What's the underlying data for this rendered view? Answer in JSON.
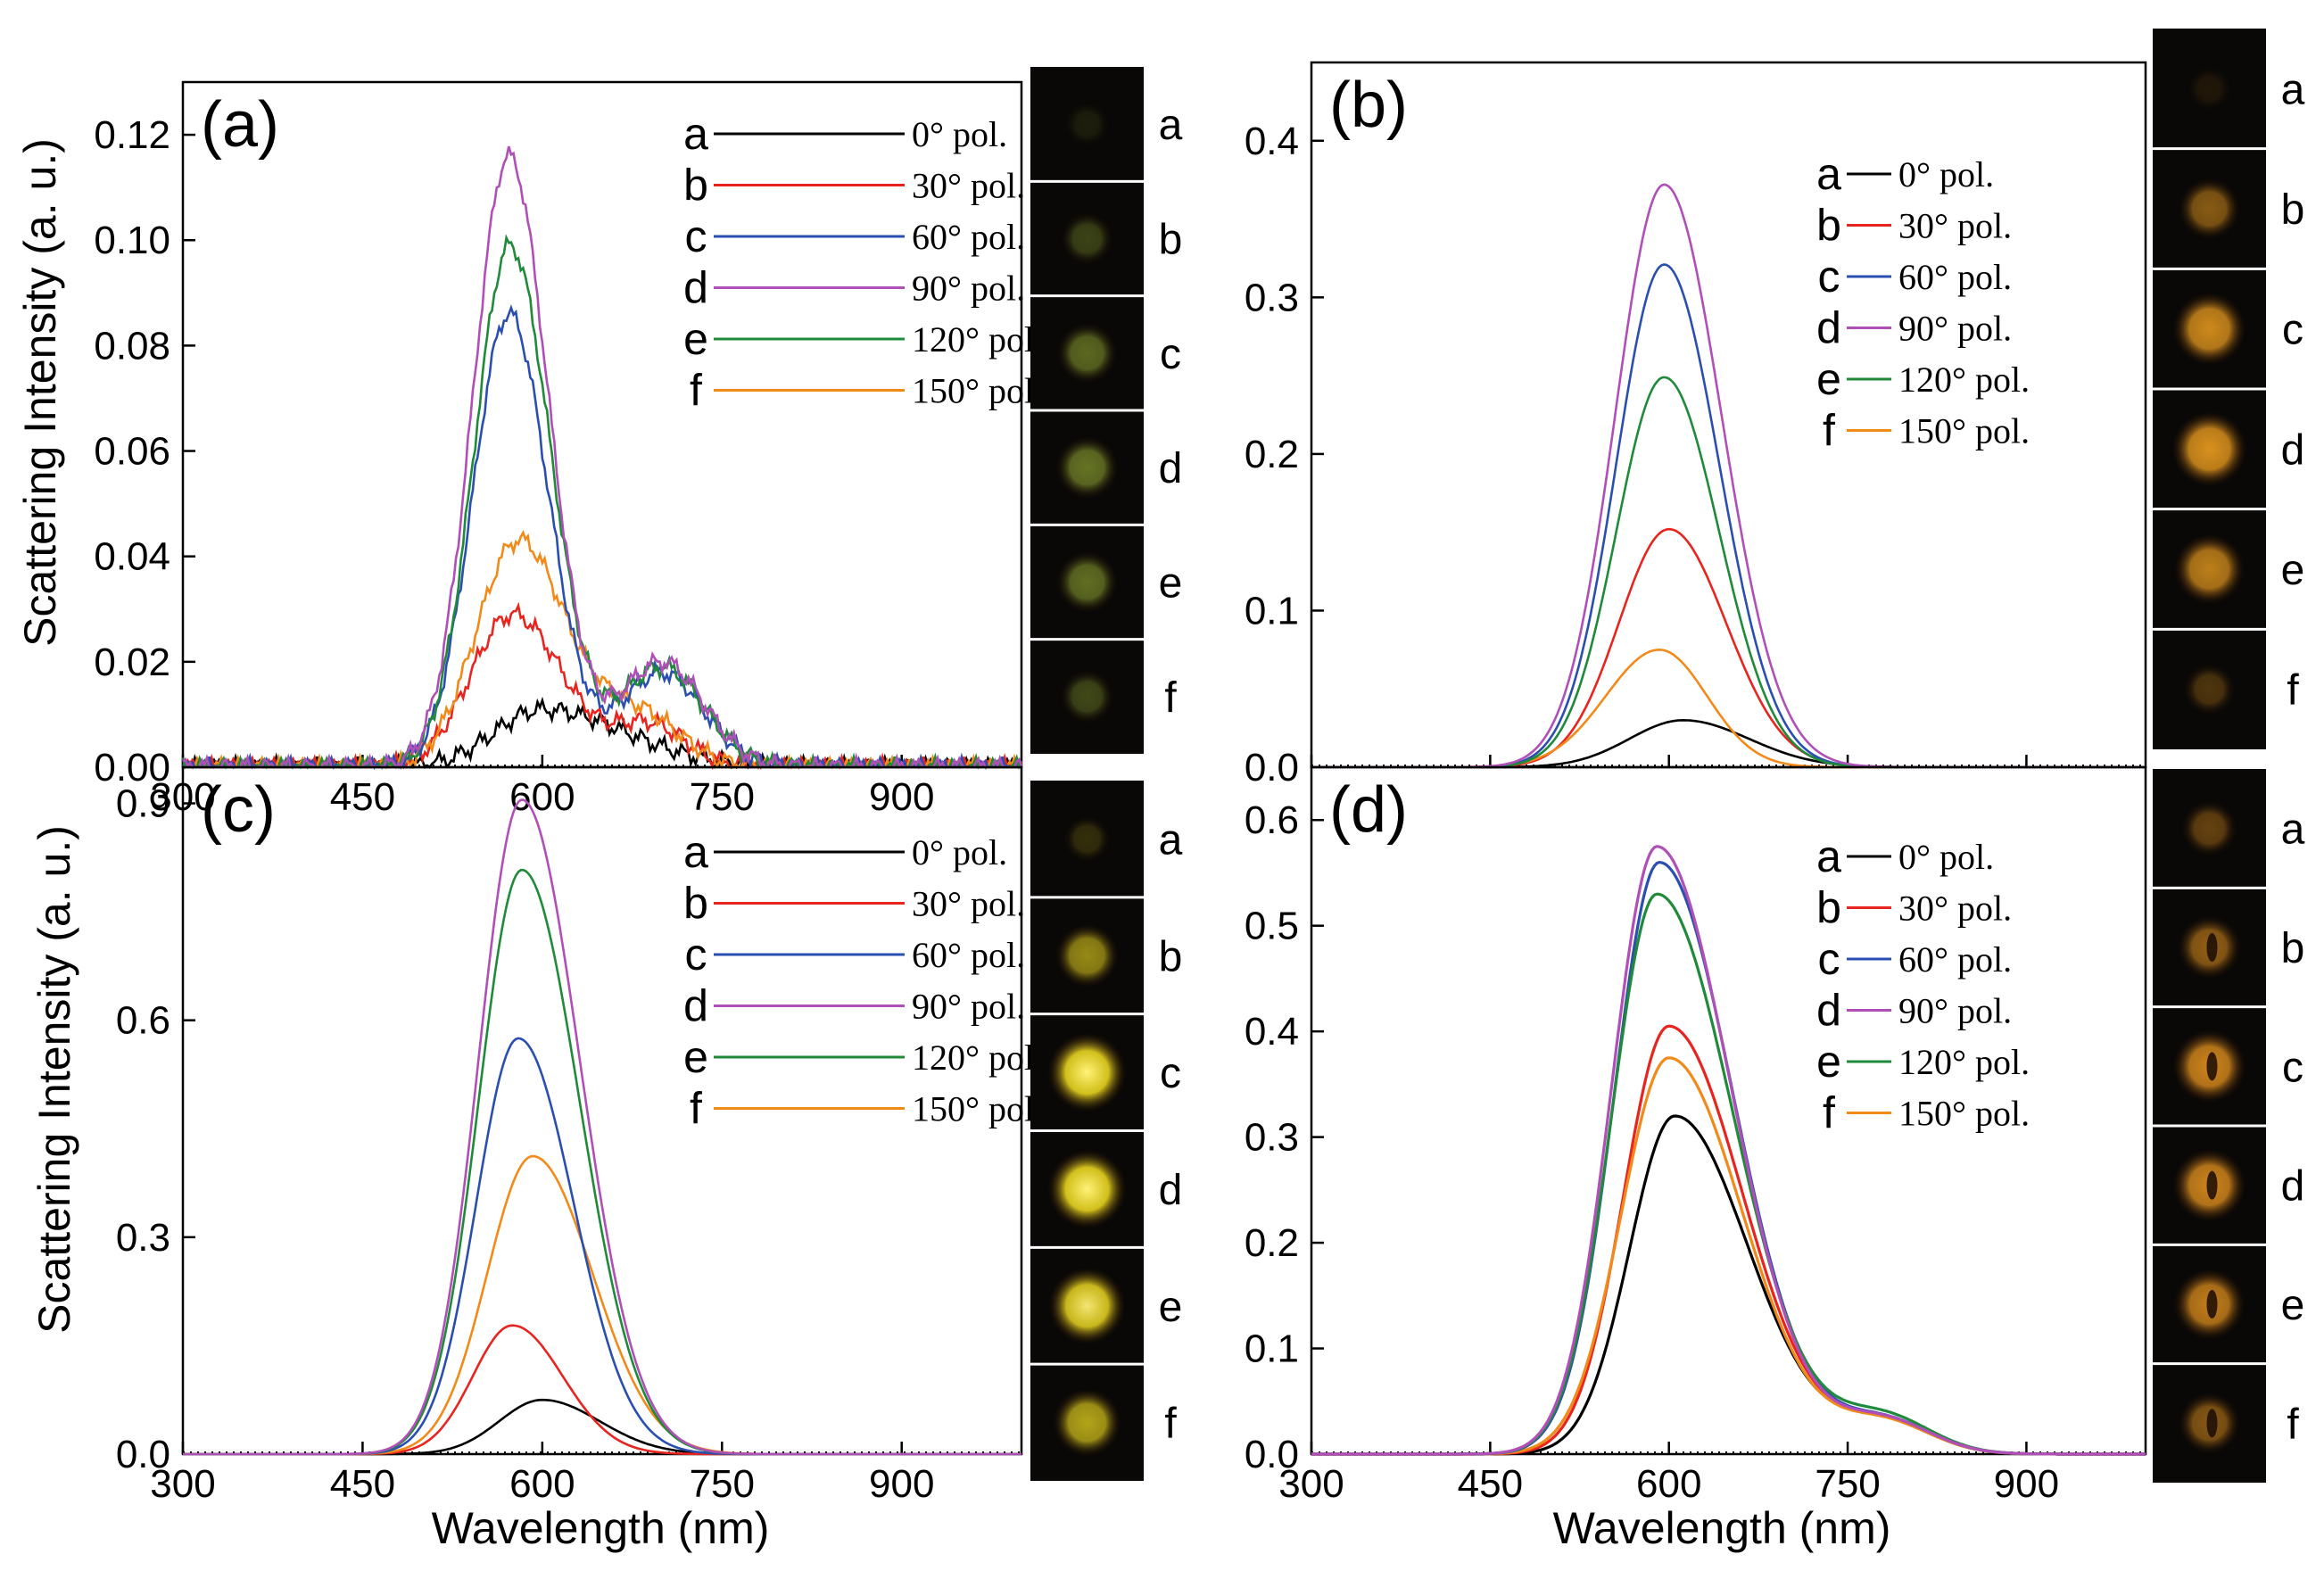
{
  "figure": {
    "xlabel": "Wavelength (nm)",
    "ylabel": "Scattering Intensity (a. u.)"
  },
  "series_colors": [
    "#000000",
    "#e8241f",
    "#2b4fb0",
    "#b04fb8",
    "#1f8a3a",
    "#f28a1a"
  ],
  "chart_data": [
    {
      "type": "line",
      "panel": "(a)",
      "xlabel": "Wavelength (nm)",
      "ylabel": "Scattering Intensity (a. u.)",
      "xlim": [
        300,
        1000
      ],
      "ylim": [
        0,
        0.13
      ],
      "xticks": [
        "300",
        "450",
        "600",
        "750",
        "900"
      ],
      "yticks": [
        "0.00",
        "0.02",
        "0.04",
        "0.06",
        "0.08",
        "0.10",
        "0.12"
      ],
      "ytick_values": [
        0,
        0.02,
        0.04,
        0.06,
        0.08,
        0.1,
        0.12
      ],
      "series": [
        {
          "key": "a",
          "name": "0° pol.",
          "peak": 600,
          "amp": 0.011,
          "w_left": 40,
          "w_right": 70,
          "shoulder": null
        },
        {
          "key": "b",
          "name": "30° pol.",
          "peak": 575,
          "amp": 0.029,
          "w_left": 35,
          "w_right": 42,
          "shoulder": [
            690,
            0.008,
            30
          ]
        },
        {
          "key": "c",
          "name": "60° pol.",
          "peak": 572,
          "amp": 0.086,
          "w_left": 30,
          "w_right": 33,
          "shoulder": [
            700,
            0.018,
            35
          ]
        },
        {
          "key": "d",
          "name": "90° pol.",
          "peak": 572,
          "amp": 0.116,
          "w_left": 30,
          "w_right": 33,
          "shoulder": [
            700,
            0.02,
            35
          ]
        },
        {
          "key": "e",
          "name": "120° pol.",
          "peak": 573,
          "amp": 0.099,
          "w_left": 30,
          "w_right": 34,
          "shoulder": [
            700,
            0.019,
            35
          ]
        },
        {
          "key": "f",
          "name": "150° pol.",
          "peak": 580,
          "amp": 0.043,
          "w_left": 35,
          "w_right": 40,
          "shoulder": [
            680,
            0.01,
            35
          ]
        }
      ],
      "image_labels": [
        "a",
        "b",
        "c",
        "d",
        "e",
        "f"
      ],
      "image_brightness": [
        0.12,
        0.32,
        0.52,
        0.58,
        0.55,
        0.35
      ],
      "image_hue": "#a8c23a"
    },
    {
      "type": "line",
      "panel": "(b)",
      "xlabel": "",
      "ylabel": "",
      "xlim": [
        300,
        1000
      ],
      "ylim": [
        0,
        0.45
      ],
      "xticks": [
        "",
        "",
        "",
        "",
        ""
      ],
      "yticks": [
        "0.0",
        "0.1",
        "0.2",
        "0.3",
        "0.4"
      ],
      "ytick_values": [
        0,
        0.1,
        0.2,
        0.3,
        0.4
      ],
      "series": [
        {
          "key": "a",
          "name": "0° pol.",
          "peak": 612,
          "amp": 0.03,
          "w_left": 45,
          "w_right": 55,
          "shoulder": null
        },
        {
          "key": "b",
          "name": "30° pol.",
          "peak": 600,
          "amp": 0.152,
          "w_left": 42,
          "w_right": 48,
          "shoulder": null
        },
        {
          "key": "c",
          "name": "60° pol.",
          "peak": 596,
          "amp": 0.321,
          "w_left": 40,
          "w_right": 46,
          "shoulder": null
        },
        {
          "key": "d",
          "name": "90° pol.",
          "peak": 596,
          "amp": 0.372,
          "w_left": 41,
          "w_right": 48,
          "shoulder": null
        },
        {
          "key": "e",
          "name": "120° pol.",
          "peak": 596,
          "amp": 0.249,
          "w_left": 40,
          "w_right": 46,
          "shoulder": null
        },
        {
          "key": "f",
          "name": "150° pol.",
          "peak": 592,
          "amp": 0.075,
          "w_left": 45,
          "w_right": 40,
          "shoulder": null
        }
      ],
      "image_labels": [
        "a",
        "b",
        "c",
        "d",
        "e",
        "f"
      ],
      "image_brightness": [
        0.1,
        0.55,
        0.85,
        0.9,
        0.78,
        0.3
      ],
      "image_hue": "#f0a020"
    },
    {
      "type": "line",
      "panel": "(c)",
      "xlabel": "Wavelength (nm)",
      "ylabel": "Scattering Intensity (a. u.)",
      "xlim": [
        300,
        1000
      ],
      "ylim": [
        0,
        0.95
      ],
      "xticks": [
        "300",
        "450",
        "600",
        "750",
        "900"
      ],
      "yticks": [
        "0.0",
        "0.3",
        "0.6",
        "0.9"
      ],
      "ytick_values": [
        0,
        0.3,
        0.6,
        0.9
      ],
      "series": [
        {
          "key": "a",
          "name": "0° pol.",
          "peak": 600,
          "amp": 0.075,
          "w_left": 36,
          "w_right": 48,
          "shoulder": null
        },
        {
          "key": "b",
          "name": "30° pol.",
          "peak": 575,
          "amp": 0.178,
          "w_left": 33,
          "w_right": 42,
          "shoulder": null
        },
        {
          "key": "c",
          "name": "60° pol.",
          "peak": 580,
          "amp": 0.575,
          "w_left": 35,
          "w_right": 46,
          "shoulder": null
        },
        {
          "key": "d",
          "name": "90° pol.",
          "peak": 583,
          "amp": 0.905,
          "w_left": 36,
          "w_right": 48,
          "shoulder": null
        },
        {
          "key": "e",
          "name": "120° pol.",
          "peak": 583,
          "amp": 0.808,
          "w_left": 36,
          "w_right": 48,
          "shoulder": null
        },
        {
          "key": "f",
          "name": "150° pol.",
          "peak": 592,
          "amp": 0.412,
          "w_left": 38,
          "w_right": 50,
          "shoulder": null
        }
      ],
      "image_labels": [
        "a",
        "b",
        "c",
        "d",
        "e",
        "f"
      ],
      "image_brightness": [
        0.18,
        0.6,
        1.0,
        1.0,
        0.95,
        0.72
      ],
      "image_hue": "#f5e020"
    },
    {
      "type": "line",
      "panel": "(d)",
      "xlabel": "Wavelength (nm)",
      "ylabel": "",
      "xlim": [
        300,
        1000
      ],
      "ylim": [
        0,
        0.65
      ],
      "xticks": [
        "300",
        "450",
        "600",
        "750",
        "900"
      ],
      "yticks": [
        "0.0",
        "0.1",
        "0.2",
        "0.3",
        "0.4",
        "0.5",
        "0.6"
      ],
      "ytick_values": [
        0,
        0.1,
        0.2,
        0.3,
        0.4,
        0.5,
        0.6
      ],
      "series": [
        {
          "key": "a",
          "name": "0° pol.",
          "peak": 605,
          "amp": 0.32,
          "w_left": 38,
          "w_right": 62,
          "shoulder": [
            780,
            0.03,
            40
          ]
        },
        {
          "key": "b",
          "name": "30° pol.",
          "peak": 600,
          "amp": 0.405,
          "w_left": 38,
          "w_right": 62,
          "shoulder": [
            780,
            0.03,
            40
          ]
        },
        {
          "key": "c",
          "name": "60° pol.",
          "peak": 592,
          "amp": 0.56,
          "w_left": 38,
          "w_right": 62,
          "shoulder": [
            780,
            0.032,
            40
          ]
        },
        {
          "key": "d",
          "name": "90° pol.",
          "peak": 590,
          "amp": 0.575,
          "w_left": 38,
          "w_right": 62,
          "shoulder": [
            780,
            0.032,
            40
          ]
        },
        {
          "key": "e",
          "name": "120° pol.",
          "peak": 590,
          "amp": 0.53,
          "w_left": 38,
          "w_right": 64,
          "shoulder": [
            780,
            0.035,
            40
          ]
        },
        {
          "key": "f",
          "name": "150° pol.",
          "peak": 600,
          "amp": 0.375,
          "w_left": 40,
          "w_right": 62,
          "shoulder": [
            780,
            0.03,
            40
          ]
        }
      ],
      "image_labels": [
        "a",
        "b",
        "c",
        "d",
        "e",
        "f"
      ],
      "image_brightness": [
        0.4,
        0.6,
        0.85,
        0.85,
        0.8,
        0.55
      ],
      "image_hue": "#f09a20",
      "image_style": "donut"
    }
  ]
}
